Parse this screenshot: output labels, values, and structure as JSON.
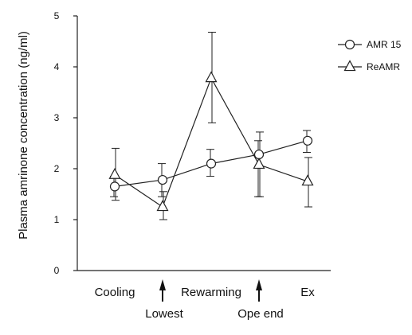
{
  "chart_data": {
    "type": "line",
    "title": "",
    "xlabel": "",
    "ylabel": "Plasma amrinone concentration (ng/ml)",
    "ylim": [
      0,
      5
    ],
    "yticks": [
      0,
      1,
      2,
      3,
      4,
      5
    ],
    "categories": [
      "Cooling",
      "Lowest",
      "Rewarming",
      "Ope end",
      "Ex"
    ],
    "category_labels_shown": [
      "Cooling",
      "Rewarming",
      "Ex"
    ],
    "annotations": [
      {
        "text": "Lowest",
        "at": "Lowest",
        "arrow": "up"
      },
      {
        "text": "Ope end",
        "at": "Ope end",
        "arrow": "up"
      }
    ],
    "series": [
      {
        "name": "AMR 15",
        "marker": "circle",
        "values": [
          1.65,
          1.78,
          2.1,
          2.28,
          2.55
        ],
        "err_low": [
          1.45,
          1.45,
          1.85,
          1.45,
          2.32
        ],
        "err_high": [
          1.85,
          2.1,
          2.38,
          2.55,
          2.75
        ]
      },
      {
        "name": "ReAMR",
        "marker": "triangle",
        "values": [
          1.88,
          1.25,
          3.78,
          2.08,
          1.75
        ],
        "err_low": [
          1.38,
          1.0,
          2.9,
          1.45,
          1.25
        ],
        "err_high": [
          2.4,
          1.55,
          4.68,
          2.72,
          2.22
        ]
      }
    ],
    "legend": "top-right"
  }
}
